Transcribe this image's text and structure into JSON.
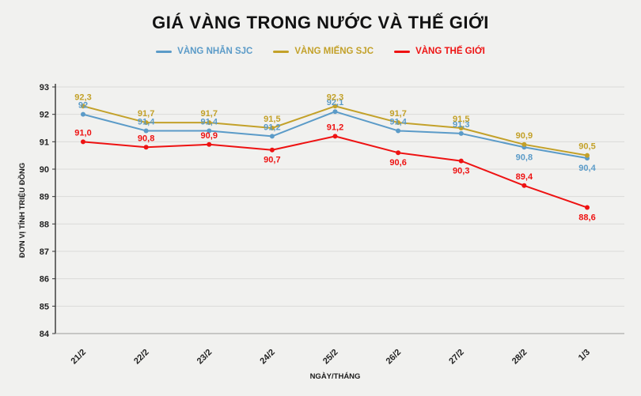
{
  "page": {
    "title": "GIÁ VÀNG TRONG NƯỚC VÀ THẾ GIỚI"
  },
  "legend": [
    {
      "label": "VÀNG NHẪN SJC",
      "color": "#5b9bc8"
    },
    {
      "label": "VÀNG MIẾNG SJC",
      "color": "#c3a129"
    },
    {
      "label": "VÀNG THẾ GIỚI",
      "color": "#ee1212"
    }
  ],
  "chart_data": {
    "type": "line",
    "categories": [
      "21/2",
      "22/2",
      "23/2",
      "24/2",
      "25/2",
      "26/2",
      "27/2",
      "28/2",
      "1/3"
    ],
    "series": [
      {
        "name": "VÀNG NHẪN SJC",
        "color": "#5b9bc8",
        "values": [
          92,
          91.4,
          91.4,
          91.2,
          92.1,
          91.4,
          91.3,
          90.8,
          90.4
        ],
        "labels": [
          "92",
          "91,4",
          "91,4",
          "91,2",
          "92,1",
          "91,4",
          "91,3",
          "90,8",
          "90,4"
        ],
        "label_side": [
          "above",
          "above",
          "above",
          "above",
          "above",
          "above",
          "above",
          "below",
          "below"
        ]
      },
      {
        "name": "VÀNG MIẾNG SJC",
        "color": "#c3a129",
        "values": [
          92.3,
          91.7,
          91.7,
          91.5,
          92.3,
          91.7,
          91.5,
          90.9,
          90.5
        ],
        "labels": [
          "92,3",
          "91,7",
          "91,7",
          "91,5",
          "92,3",
          "91,7",
          "91,5",
          "90,9",
          "90,5"
        ],
        "label_side": [
          "above",
          "above",
          "above",
          "above",
          "above",
          "above",
          "above",
          "above",
          "above"
        ]
      },
      {
        "name": "VÀNG THẾ GIỚI",
        "color": "#ee1212",
        "values": [
          91.0,
          90.8,
          90.9,
          90.7,
          91.2,
          90.6,
          90.3,
          89.4,
          88.6
        ],
        "labels": [
          "91,0",
          "90,8",
          "90,9",
          "90,7",
          "91,2",
          "90,6",
          "90,3",
          "89,4",
          "88,6"
        ],
        "label_side": [
          "above",
          "above",
          "above",
          "below",
          "above",
          "below",
          "below",
          "above",
          "below"
        ]
      }
    ],
    "title": "GIÁ VÀNG TRONG NƯỚC VÀ THẾ GIỚI",
    "xlabel": "NGÀY/THÁNG",
    "ylabel": "ĐƠN VỊ TÍNH TRIỆU ĐỒNG",
    "ylim": [
      84,
      93
    ],
    "yticks": [
      84,
      85,
      86,
      87,
      88,
      89,
      90,
      91,
      92,
      93
    ],
    "grid": true,
    "legend_position": "top",
    "decimal_separator": ","
  },
  "colors": {
    "background": "#f1f1ef",
    "grid": "#dadad8",
    "axis": "#333333",
    "tick_text": "#222222"
  }
}
